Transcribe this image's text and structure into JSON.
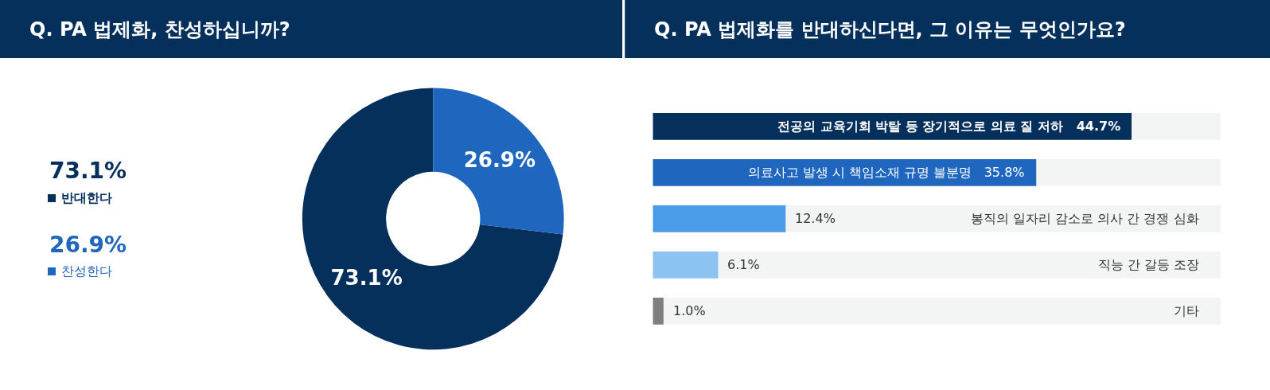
{
  "chart_data": [
    {
      "type": "donut",
      "title": "Q. PA 법제화, 찬성하십니까?",
      "categories": [
        "반대한다",
        "찬성한다"
      ],
      "values": [
        73.1,
        26.9
      ],
      "colors": [
        "#06305c",
        "#1f66be"
      ],
      "value_labels": [
        "73.1%",
        "26.9%"
      ],
      "legend": "left"
    },
    {
      "type": "bar",
      "orientation": "horizontal",
      "title": "Q. PA 법제화를 반대하신다면, 그 이유는 무엇인가요?",
      "categories": [
        "전공의 교육기회 박탈 등 장기적으로 의료 질 저하",
        "의료사고 발생 시 책임소재 규명 불분명",
        "봉직의 일자리 감소로 의사 간 경쟁 심화",
        "직능 간 갈등 조장",
        "기타"
      ],
      "values": [
        44.7,
        35.8,
        12.4,
        6.1,
        1.0
      ],
      "colors": [
        "#06305c",
        "#1f66be",
        "#4a9be8",
        "#8cc3f2",
        "#7f7f7f"
      ],
      "value_labels": [
        "44.7%",
        "35.8%",
        "12.4%",
        "6.1%",
        "1.0%"
      ],
      "tick_labels": false
    }
  ]
}
